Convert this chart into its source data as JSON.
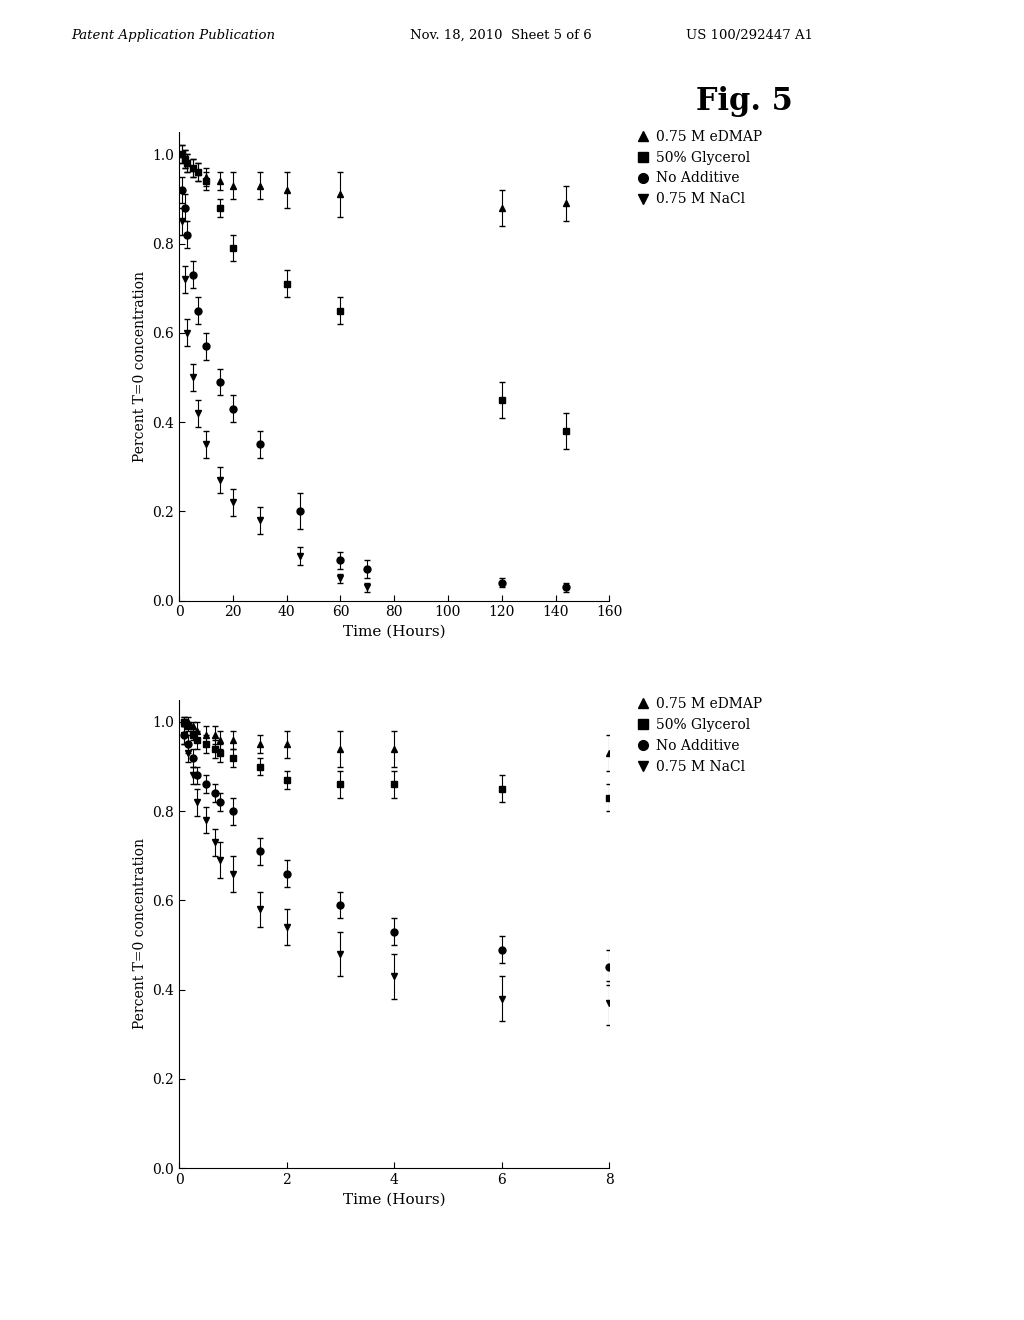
{
  "header_left": "Patent Application Publication",
  "header_mid": "Nov. 18, 2010  Sheet 5 of 6",
  "header_right": "US 100/292447 A1",
  "fig_label": "Fig. 5",
  "background_color": "#ffffff",
  "plot1": {
    "xlabel": "Time (Hours)",
    "ylabel": "Percent T=0 concentration",
    "xlim": [
      0,
      160
    ],
    "ylim": [
      0.0,
      1.05
    ],
    "xticks": [
      0,
      20,
      40,
      60,
      80,
      100,
      120,
      140,
      160
    ],
    "yticks": [
      0.0,
      0.2,
      0.4,
      0.6,
      0.8,
      1.0
    ],
    "series": {
      "eDMAP": {
        "label": "0.75 M eDMAP",
        "marker": "^",
        "x": [
          1,
          2,
          3,
          5,
          7,
          10,
          15,
          20,
          30,
          40,
          60,
          120,
          144
        ],
        "y": [
          1.0,
          0.99,
          0.98,
          0.97,
          0.96,
          0.95,
          0.94,
          0.93,
          0.93,
          0.92,
          0.91,
          0.88,
          0.89
        ],
        "yerr": [
          0.02,
          0.02,
          0.02,
          0.02,
          0.02,
          0.02,
          0.02,
          0.03,
          0.03,
          0.04,
          0.05,
          0.04,
          0.04
        ]
      },
      "glycerol": {
        "label": "50% Glycerol",
        "marker": "s",
        "x": [
          1,
          2,
          3,
          5,
          7,
          10,
          15,
          20,
          40,
          60,
          120,
          144
        ],
        "y": [
          1.0,
          0.99,
          0.98,
          0.97,
          0.96,
          0.94,
          0.88,
          0.79,
          0.71,
          0.65,
          0.45,
          0.38
        ],
        "yerr": [
          0.02,
          0.02,
          0.02,
          0.02,
          0.02,
          0.02,
          0.02,
          0.03,
          0.03,
          0.03,
          0.04,
          0.04
        ]
      },
      "no_additive": {
        "label": "No Additive",
        "marker": "o",
        "x": [
          1,
          2,
          3,
          5,
          7,
          10,
          15,
          20,
          30,
          45,
          60,
          70,
          120,
          144
        ],
        "y": [
          0.92,
          0.88,
          0.82,
          0.73,
          0.65,
          0.57,
          0.49,
          0.43,
          0.35,
          0.2,
          0.09,
          0.07,
          0.04,
          0.03
        ],
        "yerr": [
          0.03,
          0.03,
          0.03,
          0.03,
          0.03,
          0.03,
          0.03,
          0.03,
          0.03,
          0.04,
          0.02,
          0.02,
          0.01,
          0.01
        ]
      },
      "nacl": {
        "label": "0.75 M NaCl",
        "marker": "v",
        "x": [
          1,
          2,
          3,
          5,
          7,
          10,
          15,
          20,
          30,
          45,
          60,
          70
        ],
        "y": [
          0.85,
          0.72,
          0.6,
          0.5,
          0.42,
          0.35,
          0.27,
          0.22,
          0.18,
          0.1,
          0.05,
          0.03
        ],
        "yerr": [
          0.03,
          0.03,
          0.03,
          0.03,
          0.03,
          0.03,
          0.03,
          0.03,
          0.03,
          0.02,
          0.01,
          0.01
        ]
      }
    }
  },
  "plot2": {
    "xlabel": "Time (Hours)",
    "ylabel": "Percent T=0 concentration",
    "xlim": [
      0,
      8
    ],
    "ylim": [
      0.0,
      1.05
    ],
    "xticks": [
      0,
      2,
      4,
      6,
      8
    ],
    "yticks": [
      0.0,
      0.2,
      0.4,
      0.6,
      0.8,
      1.0
    ],
    "series": {
      "eDMAP": {
        "label": "0.75 M eDMAP",
        "marker": "^",
        "x": [
          0.08,
          0.17,
          0.25,
          0.33,
          0.5,
          0.67,
          0.75,
          1.0,
          1.5,
          2.0,
          3.0,
          4.0,
          8.0
        ],
        "y": [
          1.0,
          1.0,
          0.99,
          0.98,
          0.97,
          0.97,
          0.96,
          0.96,
          0.95,
          0.95,
          0.94,
          0.94,
          0.93
        ],
        "yerr": [
          0.01,
          0.01,
          0.01,
          0.02,
          0.02,
          0.02,
          0.02,
          0.02,
          0.02,
          0.03,
          0.04,
          0.04,
          0.04
        ]
      },
      "glycerol": {
        "label": "50% Glycerol",
        "marker": "s",
        "x": [
          0.08,
          0.17,
          0.25,
          0.33,
          0.5,
          0.67,
          0.75,
          1.0,
          1.5,
          2.0,
          3.0,
          4.0,
          6.0,
          8.0
        ],
        "y": [
          1.0,
          0.99,
          0.97,
          0.96,
          0.95,
          0.94,
          0.93,
          0.92,
          0.9,
          0.87,
          0.86,
          0.86,
          0.85,
          0.83
        ],
        "yerr": [
          0.01,
          0.01,
          0.01,
          0.02,
          0.02,
          0.02,
          0.02,
          0.02,
          0.02,
          0.02,
          0.03,
          0.03,
          0.03,
          0.03
        ]
      },
      "no_additive": {
        "label": "No Additive",
        "marker": "o",
        "x": [
          0.08,
          0.17,
          0.25,
          0.33,
          0.5,
          0.67,
          0.75,
          1.0,
          1.5,
          2.0,
          3.0,
          4.0,
          6.0,
          8.0
        ],
        "y": [
          0.97,
          0.95,
          0.92,
          0.88,
          0.86,
          0.84,
          0.82,
          0.8,
          0.71,
          0.66,
          0.59,
          0.53,
          0.49,
          0.45
        ],
        "yerr": [
          0.02,
          0.02,
          0.02,
          0.02,
          0.02,
          0.02,
          0.02,
          0.03,
          0.03,
          0.03,
          0.03,
          0.03,
          0.03,
          0.04
        ]
      },
      "nacl": {
        "label": "0.75 M NaCl",
        "marker": "v",
        "x": [
          0.08,
          0.17,
          0.25,
          0.33,
          0.5,
          0.67,
          0.75,
          1.0,
          1.5,
          2.0,
          3.0,
          4.0,
          6.0,
          8.0
        ],
        "y": [
          0.97,
          0.93,
          0.88,
          0.82,
          0.78,
          0.73,
          0.69,
          0.66,
          0.58,
          0.54,
          0.48,
          0.43,
          0.38,
          0.37
        ],
        "yerr": [
          0.02,
          0.02,
          0.02,
          0.03,
          0.03,
          0.03,
          0.04,
          0.04,
          0.04,
          0.04,
          0.05,
          0.05,
          0.05,
          0.05
        ]
      }
    }
  },
  "legend_entries": [
    {
      "label": "0.75 M eDMAP",
      "marker": "^"
    },
    {
      "label": "50% Glycerol",
      "marker": "s"
    },
    {
      "label": "No Additive",
      "marker": "o"
    },
    {
      "label": "0.75 M NaCl",
      "marker": "v"
    }
  ]
}
